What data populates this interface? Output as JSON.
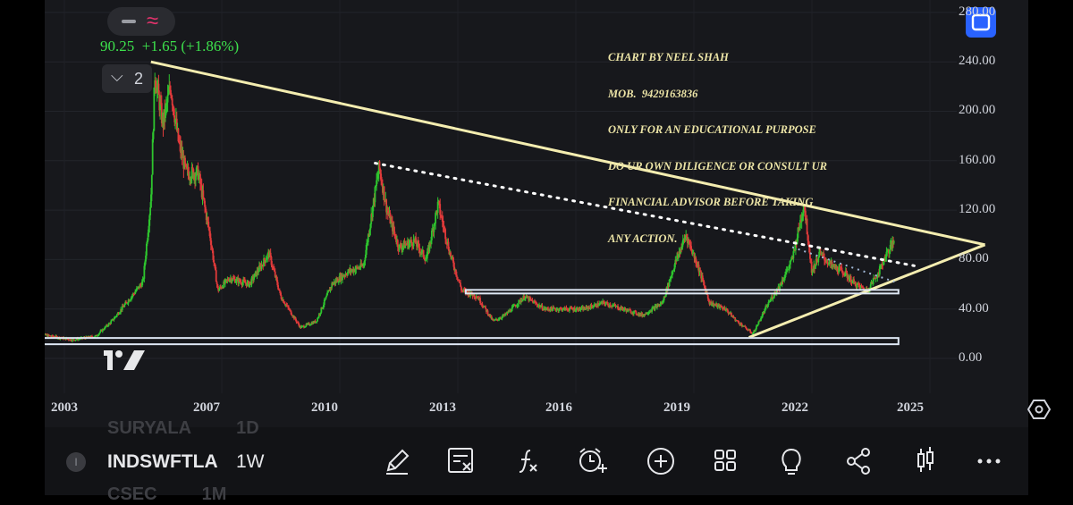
{
  "chart_data": {
    "type": "candlestick",
    "symbol": "INDSWFTLA",
    "interval": "1W",
    "x_range": [
      "2002",
      "2026.5"
    ],
    "ylim": [
      -20,
      290
    ],
    "y_ticks": [
      "280.00",
      "240.00",
      "200.00",
      "160.00",
      "120.00",
      "80.00",
      "40.00",
      "0.00"
    ],
    "x_ticks": [
      "2003",
      "2007",
      "2010",
      "2013",
      "2016",
      "2019",
      "2022",
      "2025"
    ],
    "last_price": 90.25,
    "change": "+1.65",
    "change_pct": "(+1.86%)",
    "price_path": [
      [
        2002.1,
        20
      ],
      [
        2003.0,
        15
      ],
      [
        2003.6,
        18
      ],
      [
        2004.0,
        30
      ],
      [
        2004.5,
        50
      ],
      [
        2004.8,
        62
      ],
      [
        2005.0,
        130
      ],
      [
        2005.1,
        230
      ],
      [
        2005.3,
        190
      ],
      [
        2005.5,
        220
      ],
      [
        2005.7,
        175
      ],
      [
        2005.9,
        150
      ],
      [
        2006.2,
        150
      ],
      [
        2006.5,
        100
      ],
      [
        2006.7,
        55
      ],
      [
        2007.0,
        65
      ],
      [
        2007.5,
        60
      ],
      [
        2008.0,
        85
      ],
      [
        2008.3,
        50
      ],
      [
        2008.8,
        25
      ],
      [
        2009.2,
        30
      ],
      [
        2009.6,
        60
      ],
      [
        2010.0,
        70
      ],
      [
        2010.4,
        75
      ],
      [
        2010.8,
        155
      ],
      [
        2011.0,
        120
      ],
      [
        2011.3,
        90
      ],
      [
        2011.7,
        95
      ],
      [
        2012.0,
        80
      ],
      [
        2012.3,
        125
      ],
      [
        2012.6,
        85
      ],
      [
        2012.9,
        55
      ],
      [
        2013.3,
        50
      ],
      [
        2013.7,
        30
      ],
      [
        2014.0,
        35
      ],
      [
        2014.5,
        50
      ],
      [
        2015.0,
        40
      ],
      [
        2016.0,
        40
      ],
      [
        2016.5,
        45
      ],
      [
        2017.0,
        40
      ],
      [
        2017.5,
        35
      ],
      [
        2018.0,
        45
      ],
      [
        2018.3,
        75
      ],
      [
        2018.6,
        100
      ],
      [
        2018.9,
        75
      ],
      [
        2019.2,
        45
      ],
      [
        2019.6,
        40
      ],
      [
        2019.9,
        30
      ],
      [
        2020.3,
        20
      ],
      [
        2020.7,
        45
      ],
      [
        2021.0,
        60
      ],
      [
        2021.3,
        80
      ],
      [
        2021.5,
        110
      ],
      [
        2021.6,
        125
      ],
      [
        2021.8,
        70
      ],
      [
        2022.0,
        85
      ],
      [
        2022.3,
        75
      ],
      [
        2022.6,
        70
      ],
      [
        2022.9,
        60
      ],
      [
        2023.2,
        55
      ],
      [
        2023.5,
        70
      ],
      [
        2023.7,
        85
      ],
      [
        2023.9,
        95
      ]
    ],
    "trendlines": [
      {
        "name": "upper-resistance",
        "from": [
          2005.0,
          240
        ],
        "to": [
          2026.2,
          92
        ]
      },
      {
        "name": "lower-support",
        "from": [
          2020.2,
          17
        ],
        "to": [
          2026.2,
          92
        ]
      },
      {
        "name": "dotted-resistance",
        "from": [
          2010.7,
          158
        ],
        "to": [
          2024.4,
          75
        ]
      },
      {
        "name": "support-band",
        "from": [
          2013.0,
          54
        ],
        "to": [
          2024.0,
          54
        ]
      },
      {
        "name": "base-band",
        "from": [
          2002.0,
          14
        ],
        "to": [
          2024.0,
          14
        ]
      }
    ]
  },
  "status": {
    "quote_price": "90.25",
    "quote_change": "+1.65",
    "quote_pct": "(+1.86%)",
    "indicator_count": "2",
    "wave_glyph": "≈"
  },
  "annotation": {
    "lines": [
      "CHART BY NEEL SHAH",
      "MOB.  9429163836",
      "ONLY FOR AN EDUCATIONAL PURPOSE",
      "DO UR OWN DILIGENCE OR CONSULT UR",
      "FINANCIAL ADVISOR BEFORE TAKING",
      "ANY ACTION."
    ]
  },
  "bottom_bar": {
    "ghost_top_symbol": "SURYALA",
    "ghost_top_interval": "1D",
    "symbol": "INDSWFTLA",
    "interval": "1W",
    "ghost_bottom_symbol": "CSEC",
    "ghost_bottom_interval": "1M",
    "symbol_dot": "I",
    "tools": [
      "pencil-icon",
      "formula-list-icon",
      "function-icon",
      "alarm-add-icon",
      "plus-circle-icon",
      "grid-icon",
      "lightbulb-icon",
      "share-icon",
      "candles-icon",
      "more-icon"
    ]
  },
  "colors": {
    "background": "#17181c",
    "up": "#2ec52e",
    "down": "#e03a3a",
    "trendline": "#f4edb0",
    "band": "#dfe8f5",
    "quote": "#3de04c",
    "accent": "#2962ff"
  }
}
